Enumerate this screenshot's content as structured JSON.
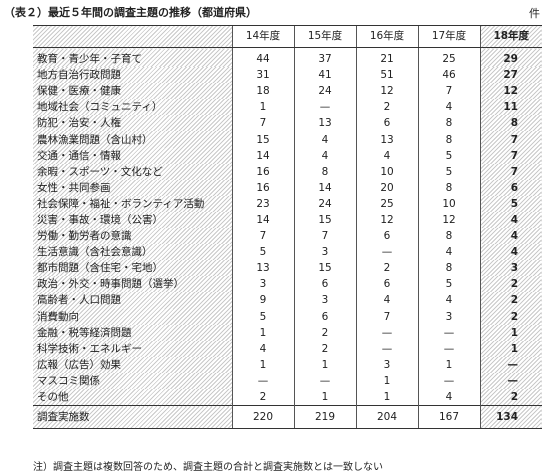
{
  "title": "（表２）最近５年間の調査主題の推移（都道府県）",
  "unit": "件",
  "columns": [
    "14年度",
    "15年度",
    "16年度",
    "17年度",
    "18年度"
  ],
  "rows": [
    {
      "label": "教育・青少年・子育て",
      "values": [
        "44",
        "37",
        "21",
        "25",
        "29"
      ]
    },
    {
      "label": "地方自治行政問題",
      "values": [
        "31",
        "41",
        "51",
        "46",
        "27"
      ]
    },
    {
      "label": "保健・医療・健康",
      "values": [
        "18",
        "24",
        "12",
        "7",
        "12"
      ]
    },
    {
      "label": "地域社会（コミュニティ）",
      "values": [
        "1",
        "—",
        "2",
        "4",
        "11"
      ]
    },
    {
      "label": "防犯・治安・人権",
      "values": [
        "7",
        "13",
        "6",
        "8",
        "8"
      ]
    },
    {
      "label": "農林漁業問題（含山村）",
      "values": [
        "15",
        "4",
        "13",
        "8",
        "7"
      ]
    },
    {
      "label": "交通・通信・情報",
      "values": [
        "14",
        "4",
        "4",
        "5",
        "7"
      ]
    },
    {
      "label": "余暇・スポーツ・文化など",
      "values": [
        "16",
        "8",
        "10",
        "5",
        "7"
      ]
    },
    {
      "label": "女性・共同参画",
      "values": [
        "16",
        "14",
        "20",
        "8",
        "6"
      ]
    },
    {
      "label": "社会保障・福祉・ボランティア活動",
      "values": [
        "23",
        "24",
        "25",
        "10",
        "5"
      ]
    },
    {
      "label": "災害・事故・環境（公害）",
      "values": [
        "14",
        "15",
        "12",
        "12",
        "4"
      ]
    },
    {
      "label": "労働・勤労者の意識",
      "values": [
        "7",
        "7",
        "6",
        "8",
        "4"
      ]
    },
    {
      "label": "生活意識（含社会意識）",
      "values": [
        "5",
        "3",
        "—",
        "4",
        "4"
      ]
    },
    {
      "label": "都市問題（含住宅・宅地）",
      "values": [
        "13",
        "15",
        "2",
        "8",
        "3"
      ]
    },
    {
      "label": "政治・外交・時事問題（選挙）",
      "values": [
        "3",
        "6",
        "6",
        "5",
        "2"
      ]
    },
    {
      "label": "高齢者・人口問題",
      "values": [
        "9",
        "3",
        "4",
        "4",
        "2"
      ]
    },
    {
      "label": "消費動向",
      "values": [
        "5",
        "6",
        "7",
        "3",
        "2"
      ]
    },
    {
      "label": "金融・税等経済問題",
      "values": [
        "1",
        "2",
        "—",
        "—",
        "1"
      ]
    },
    {
      "label": "科学技術・エネルギー",
      "values": [
        "4",
        "2",
        "—",
        "—",
        "1"
      ]
    },
    {
      "label": "広報（広告）効果",
      "values": [
        "1",
        "1",
        "3",
        "1",
        "—"
      ]
    },
    {
      "label": "マスコミ関係",
      "values": [
        "—",
        "—",
        "1",
        "—",
        "—"
      ]
    },
    {
      "label": "その他",
      "values": [
        "2",
        "1",
        "1",
        "4",
        "2"
      ]
    }
  ],
  "total": {
    "label": "調査実施数",
    "values": [
      "220",
      "219",
      "204",
      "167",
      "134"
    ]
  },
  "note": "注）調査主題は複数回答のため、調査主題の合計と調査実施数とは一致しない"
}
